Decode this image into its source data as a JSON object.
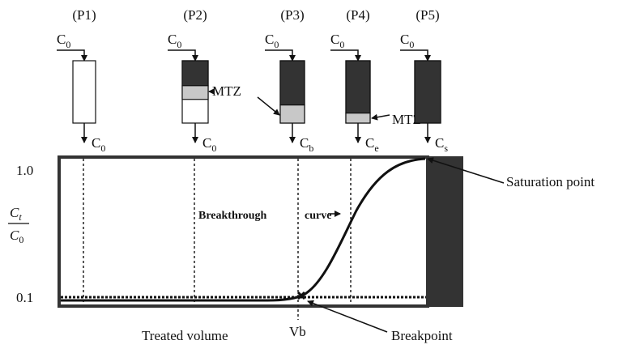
{
  "phases": [
    {
      "label": "(P1)",
      "inlet": {
        "base": "C",
        "sub": "0"
      },
      "outlet": {
        "base": "C",
        "sub": "0"
      }
    },
    {
      "label": "(P2)",
      "inlet": {
        "base": "C",
        "sub": "0"
      },
      "outlet": {
        "base": "C",
        "sub": "0"
      }
    },
    {
      "label": "(P3)",
      "inlet": {
        "base": "C",
        "sub": "0"
      },
      "outlet": {
        "base": "C",
        "sub": "b"
      }
    },
    {
      "label": "(P4)",
      "inlet": {
        "base": "C",
        "sub": "0"
      },
      "outlet": {
        "base": "C",
        "sub": "e"
      }
    },
    {
      "label": "(P5)",
      "inlet": {
        "base": "C",
        "sub": "0"
      },
      "outlet": {
        "base": "C",
        "sub": "s"
      }
    }
  ],
  "mtz_labels": [
    "MTZ",
    "MTZ"
  ],
  "axis": {
    "y_top": "1.0",
    "y_bottom": "0.1",
    "y_label": {
      "num_base": "C",
      "num_sub": "t",
      "den_base": "C",
      "den_sub": "0"
    },
    "x_label": "Treated volume",
    "x_marker": "Vb"
  },
  "annotations": {
    "curve_left": "Breakthrough",
    "curve_right": "curve",
    "saturation": "Saturation point",
    "breakpoint": "Breakpoint"
  }
}
